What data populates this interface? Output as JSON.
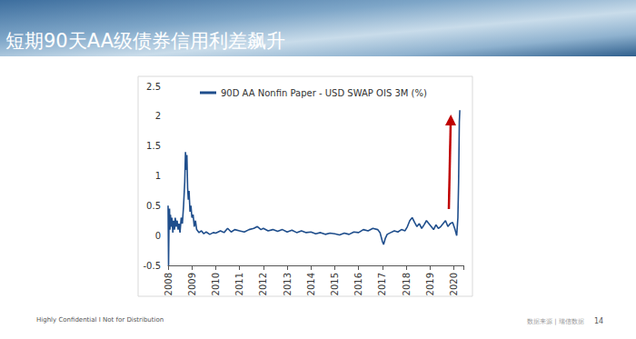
{
  "slide": {
    "title": "短期90天AA级债券信用利差飙升",
    "footer": "Highly Confidential I Not for Distribution",
    "source": "数据来源 | 瑞信数据",
    "page": "14"
  },
  "chart_data": {
    "type": "line",
    "x": [
      2008.0,
      2008.02,
      2008.04,
      2008.06,
      2008.08,
      2008.1,
      2008.13,
      2008.16,
      2008.2,
      2008.23,
      2008.27,
      2008.3,
      2008.34,
      2008.38,
      2008.42,
      2008.46,
      2008.5,
      2008.55,
      2008.6,
      2008.65,
      2008.7,
      2008.73,
      2008.76,
      2008.79,
      2008.82,
      2008.85,
      2008.88,
      2008.92,
      2008.96,
      2009.0,
      2009.05,
      2009.1,
      2009.15,
      2009.2,
      2009.3,
      2009.4,
      2009.5,
      2009.6,
      2009.75,
      2009.9,
      2010.0,
      2010.2,
      2010.35,
      2010.5,
      2010.65,
      2010.8,
      2011.0,
      2011.2,
      2011.4,
      2011.6,
      2011.75,
      2011.9,
      2012.0,
      2012.2,
      2012.4,
      2012.6,
      2012.8,
      2013.0,
      2013.2,
      2013.4,
      2013.6,
      2013.8,
      2014.0,
      2014.2,
      2014.4,
      2014.6,
      2014.8,
      2015.0,
      2015.2,
      2015.4,
      2015.6,
      2015.8,
      2016.0,
      2016.2,
      2016.4,
      2016.6,
      2016.8,
      2016.9,
      2017.0,
      2017.05,
      2017.12,
      2017.2,
      2017.35,
      2017.5,
      2017.65,
      2017.8,
      2017.95,
      2018.05,
      2018.15,
      2018.25,
      2018.35,
      2018.45,
      2018.55,
      2018.65,
      2018.75,
      2018.85,
      2018.95,
      2019.05,
      2019.15,
      2019.25,
      2019.35,
      2019.45,
      2019.55,
      2019.65,
      2019.75,
      2019.85,
      2019.95,
      2020.05,
      2020.12,
      2020.17,
      2020.2,
      2020.23,
      2020.25
    ],
    "series": [
      {
        "name": "90D AA Nonfin Paper - USD SWAP OIS 3M (%)",
        "color": "#1f4e8c",
        "values": [
          0.5,
          -0.5,
          0.3,
          0.45,
          0.1,
          0.35,
          0.15,
          0.3,
          0.05,
          0.25,
          0.1,
          0.3,
          0.15,
          0.25,
          0.1,
          0.2,
          0.05,
          0.3,
          0.2,
          0.5,
          0.9,
          1.4,
          1.1,
          1.35,
          0.8,
          0.6,
          0.75,
          0.4,
          0.5,
          0.3,
          0.35,
          0.15,
          0.25,
          0.1,
          0.05,
          0.08,
          0.03,
          0.06,
          0.02,
          0.05,
          0.04,
          0.08,
          0.05,
          0.12,
          0.06,
          0.1,
          0.08,
          0.06,
          0.1,
          0.12,
          0.15,
          0.1,
          0.12,
          0.08,
          0.1,
          0.07,
          0.1,
          0.06,
          0.09,
          0.05,
          0.08,
          0.05,
          0.06,
          0.03,
          0.05,
          0.02,
          0.04,
          0.03,
          0.01,
          0.04,
          0.02,
          0.06,
          0.05,
          0.1,
          0.08,
          0.12,
          0.1,
          0.05,
          -0.1,
          -0.15,
          -0.05,
          0.02,
          0.05,
          0.08,
          0.06,
          0.1,
          0.08,
          0.15,
          0.25,
          0.3,
          0.22,
          0.15,
          0.2,
          0.12,
          0.18,
          0.25,
          0.2,
          0.15,
          0.1,
          0.18,
          0.12,
          0.15,
          0.2,
          0.25,
          0.15,
          0.2,
          0.22,
          0.1,
          0.0,
          0.3,
          0.9,
          1.9,
          2.1
        ]
      }
    ],
    "xlim": [
      2008,
      2020.4
    ],
    "xticks": [
      2008,
      2009,
      2010,
      2011,
      2012,
      2013,
      2014,
      2015,
      2016,
      2017,
      2018,
      2019,
      2020
    ],
    "ylim": [
      -0.5,
      2.5
    ],
    "yticks": [
      -0.5,
      0,
      0.5,
      1,
      1.5,
      2,
      2.5
    ],
    "grid": false,
    "legend": "upper left"
  }
}
